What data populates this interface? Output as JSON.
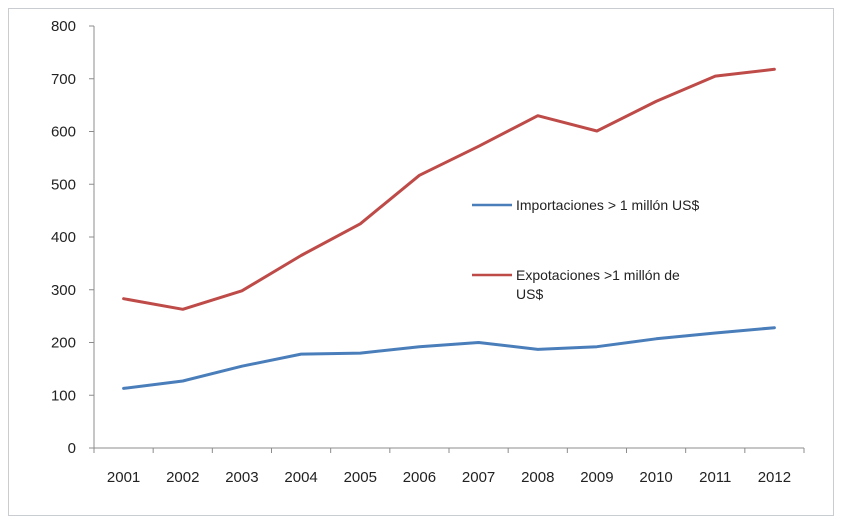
{
  "chart_data": {
    "type": "line",
    "title": "",
    "xlabel": "",
    "ylabel": "",
    "categories": [
      "2001",
      "2002",
      "2003",
      "2004",
      "2005",
      "2006",
      "2007",
      "2008",
      "2009",
      "2010",
      "2011",
      "2012"
    ],
    "ylim": [
      0,
      800
    ],
    "yticks": [
      "0",
      "100",
      "200",
      "300",
      "400",
      "500",
      "600",
      "700",
      "800"
    ],
    "grid": false,
    "legend_position": "right",
    "series": [
      {
        "name": "Importaciones > 1 millón US$",
        "color": "#4a7ebb",
        "values": [
          113,
          127,
          155,
          178,
          180,
          192,
          200,
          187,
          192,
          207,
          218,
          228
        ]
      },
      {
        "name": "Expotaciones >1 millón de US$",
        "color": "#be4b48",
        "values": [
          283,
          263,
          298,
          365,
          425,
          517,
          572,
          630,
          601,
          657,
          705,
          718
        ]
      }
    ]
  }
}
